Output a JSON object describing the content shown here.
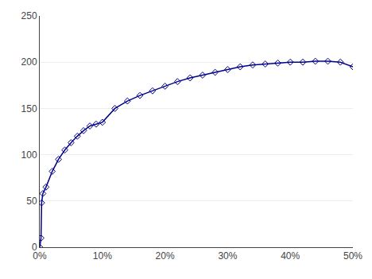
{
  "chart_data": {
    "type": "line",
    "x": [
      0.0,
      0.002,
      0.003,
      0.005,
      0.01,
      0.02,
      0.03,
      0.04,
      0.05,
      0.06,
      0.07,
      0.08,
      0.09,
      0.1,
      0.12,
      0.14,
      0.16,
      0.18,
      0.2,
      0.22,
      0.24,
      0.26,
      0.28,
      0.3,
      0.32,
      0.34,
      0.36,
      0.38,
      0.4,
      0.42,
      0.44,
      0.46,
      0.48,
      0.5
    ],
    "values": [
      0,
      10,
      48,
      58,
      65,
      82,
      95,
      105,
      113,
      120,
      126,
      131,
      133,
      135,
      150,
      158,
      164,
      169,
      174,
      179,
      183,
      186,
      189,
      192,
      195,
      197,
      198,
      199,
      200,
      200,
      201,
      201,
      200,
      195
    ],
    "color": "#00008B",
    "marker": "diamond-open",
    "line_style": "solid",
    "xlim": [
      0.0,
      0.5
    ],
    "ylim": [
      0,
      250
    ],
    "xticks": [
      {
        "value": 0.0,
        "label": "0%"
      },
      {
        "value": 0.1,
        "label": "10%"
      },
      {
        "value": 0.2,
        "label": "20%"
      },
      {
        "value": 0.3,
        "label": "30%"
      },
      {
        "value": 0.4,
        "label": "40%"
      },
      {
        "value": 0.5,
        "label": "50%"
      }
    ],
    "yticks": [
      0,
      50,
      100,
      150,
      200,
      250
    ],
    "grid": "y"
  }
}
